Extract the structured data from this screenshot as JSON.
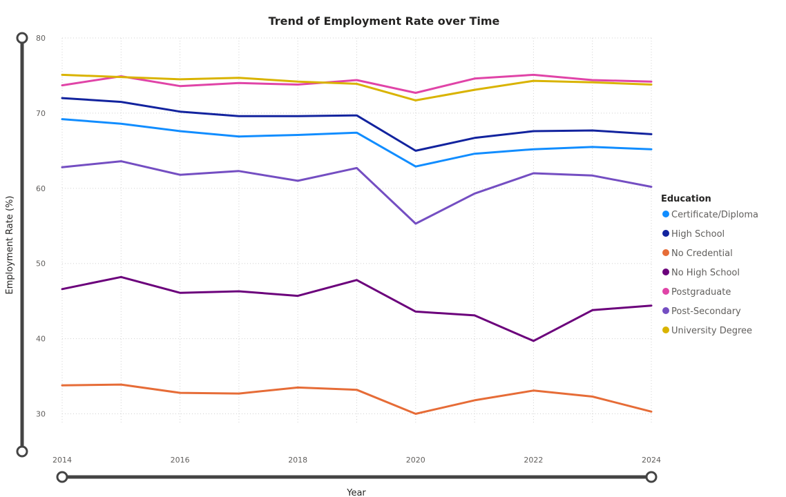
{
  "chart_data": {
    "type": "line",
    "title": "Trend of Employment Rate over Time",
    "xlabel": "Year",
    "ylabel": "Employment Rate (%)",
    "x": [
      2014,
      2015,
      2016,
      2017,
      2018,
      2019,
      2020,
      2021,
      2022,
      2023,
      2024
    ],
    "x_ticks": [
      "2014",
      "2016",
      "2018",
      "2020",
      "2022",
      "2024"
    ],
    "y_ticks": [
      "30",
      "40",
      "50",
      "60",
      "70",
      "80"
    ],
    "xlim": [
      2014,
      2024
    ],
    "ylim": [
      25,
      80
    ],
    "grid": true,
    "legend_title": "Education",
    "legend_position": "right",
    "series": [
      {
        "name": "Certificate/Diploma",
        "color": "#118DFF",
        "values": [
          69.2,
          68.6,
          67.6,
          66.9,
          67.1,
          67.4,
          62.9,
          64.6,
          65.2,
          65.5,
          65.2
        ]
      },
      {
        "name": "High School",
        "color": "#12239E",
        "values": [
          72.0,
          71.5,
          70.2,
          69.6,
          69.6,
          69.7,
          65.0,
          66.7,
          67.6,
          67.7,
          67.2
        ]
      },
      {
        "name": "No Credential",
        "color": "#E66C37",
        "values": [
          33.8,
          33.9,
          32.8,
          32.7,
          33.5,
          33.2,
          30.0,
          31.8,
          33.1,
          32.3,
          30.3
        ]
      },
      {
        "name": "No High School",
        "color": "#6B007B",
        "values": [
          46.6,
          48.2,
          46.1,
          46.3,
          45.7,
          47.8,
          43.6,
          43.1,
          39.7,
          43.8,
          44.4
        ]
      },
      {
        "name": "Postgraduate",
        "color": "#E044A7",
        "values": [
          73.7,
          74.9,
          73.6,
          74.0,
          73.8,
          74.4,
          72.7,
          74.6,
          75.1,
          74.4,
          74.2
        ]
      },
      {
        "name": "Post-Secondary",
        "color": "#744EC2",
        "values": [
          62.8,
          63.6,
          61.8,
          62.3,
          61.0,
          62.7,
          55.3,
          59.3,
          62.0,
          61.7,
          60.2
        ]
      },
      {
        "name": "University Degree",
        "color": "#D9B300",
        "values": [
          75.1,
          74.8,
          74.5,
          74.7,
          74.2,
          73.9,
          71.7,
          73.1,
          74.3,
          74.1,
          73.8
        ]
      }
    ]
  }
}
